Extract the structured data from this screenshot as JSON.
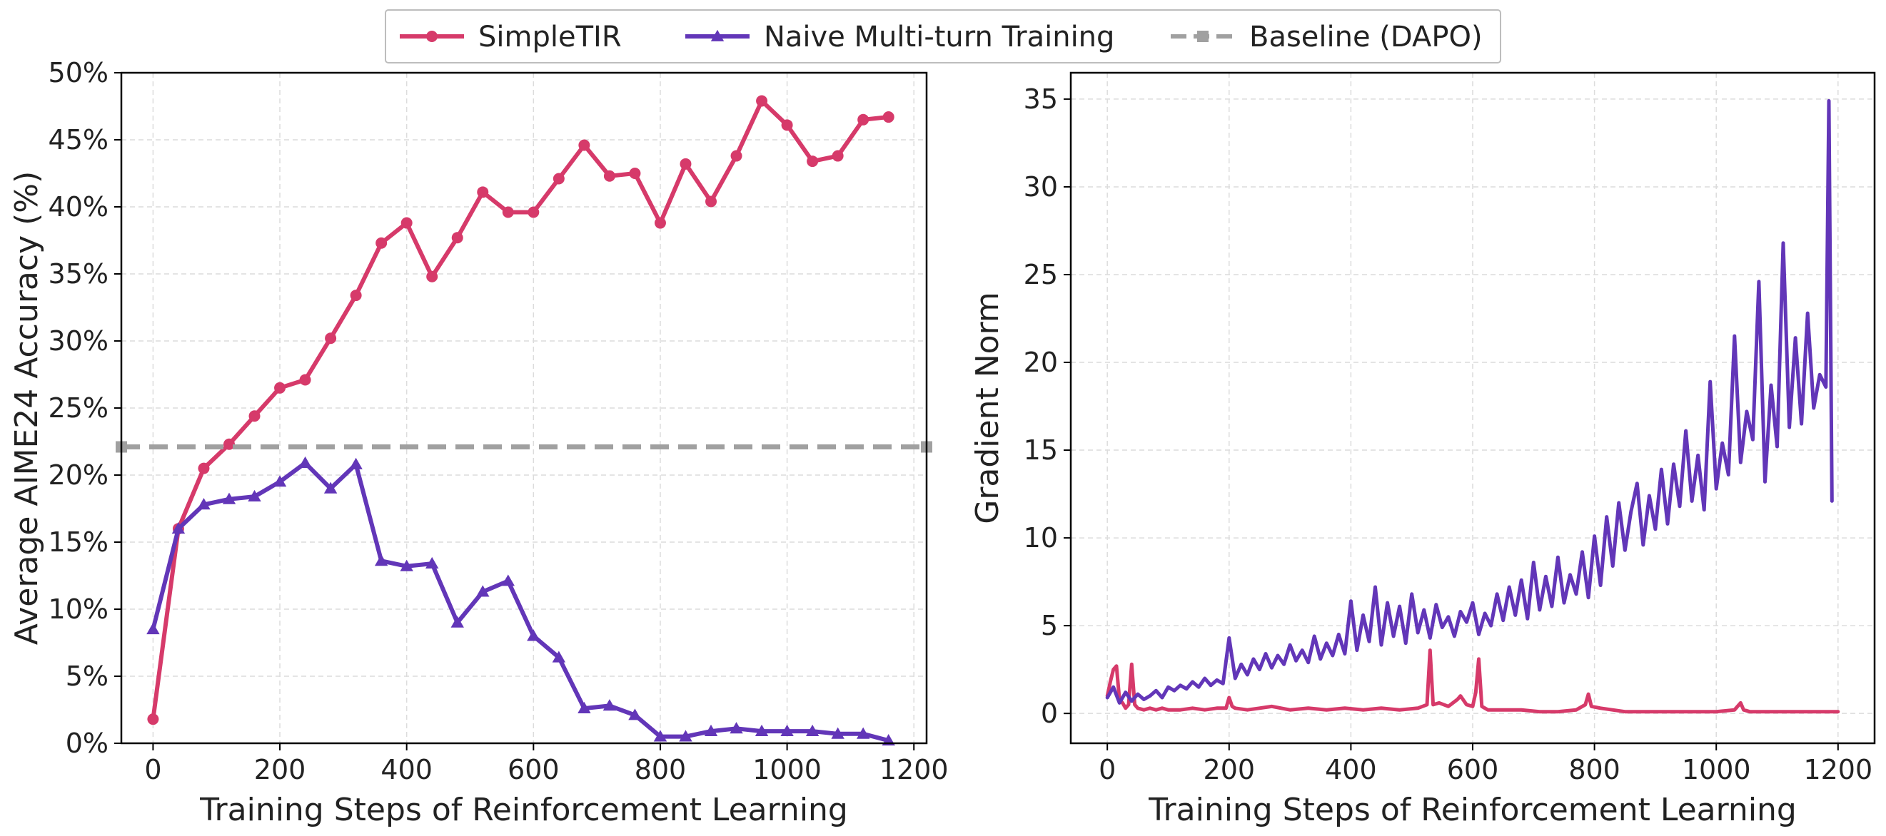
{
  "legend": {
    "placement": "top-center",
    "entries": [
      {
        "label": "SimpleTIR",
        "color": "#d63a6a",
        "marker": "circle",
        "style": "solid"
      },
      {
        "label": "Naive Multi-turn Training",
        "color": "#6236b8",
        "marker": "triangle",
        "style": "solid"
      },
      {
        "label": "Baseline (DAPO)",
        "color": "#a0a0a0",
        "marker": "square",
        "style": "dashed"
      }
    ]
  },
  "chart_data": [
    {
      "type": "line",
      "xlabel": "Training Steps of Reinforcement Learning",
      "ylabel": "Average AIME24 Accuracy (%)",
      "xlim": [
        -50,
        1220
      ],
      "ylim": [
        0,
        50
      ],
      "xticks": [
        0,
        200,
        400,
        600,
        800,
        1000,
        1200
      ],
      "xtick_labels": [
        "0",
        "200",
        "400",
        "600",
        "800",
        "1000",
        "1200"
      ],
      "yticks": [
        0,
        5,
        10,
        15,
        20,
        25,
        30,
        35,
        40,
        45,
        50
      ],
      "ytick_labels": [
        "0%",
        "5%",
        "10%",
        "15%",
        "20%",
        "25%",
        "30%",
        "35%",
        "40%",
        "45%",
        "50%"
      ],
      "grid": true,
      "series": [
        {
          "name": "SimpleTIR",
          "color": "#d63a6a",
          "marker": "circle",
          "x": [
            0,
            40,
            80,
            120,
            160,
            200,
            240,
            280,
            320,
            360,
            400,
            440,
            480,
            520,
            560,
            600,
            640,
            680,
            720,
            760,
            800,
            840,
            880,
            920,
            960,
            1000,
            1040,
            1080,
            1120,
            1160
          ],
          "y": [
            1.8,
            16.0,
            20.5,
            22.3,
            24.4,
            26.5,
            27.1,
            30.2,
            33.4,
            37.3,
            38.8,
            34.8,
            37.7,
            41.1,
            39.6,
            39.6,
            42.1,
            44.6,
            42.3,
            42.5,
            38.8,
            43.2,
            40.4,
            43.8,
            47.9,
            46.1,
            43.4,
            43.8,
            46.5,
            46.7
          ]
        },
        {
          "name": "Naive Multi-turn Training",
          "color": "#6236b8",
          "marker": "triangle",
          "x": [
            0,
            40,
            80,
            120,
            160,
            200,
            240,
            280,
            320,
            360,
            400,
            440,
            480,
            520,
            560,
            600,
            640,
            680,
            720,
            760,
            800,
            840,
            880,
            920,
            960,
            1000,
            1040,
            1080,
            1120,
            1160
          ],
          "y": [
            8.5,
            16.0,
            17.8,
            18.2,
            18.4,
            19.5,
            20.9,
            19.0,
            20.8,
            13.6,
            13.2,
            13.4,
            9.0,
            11.3,
            12.1,
            8.0,
            6.4,
            2.6,
            2.8,
            2.1,
            0.5,
            0.5,
            0.9,
            1.1,
            0.9,
            0.9,
            0.9,
            0.7,
            0.7,
            0.2
          ]
        },
        {
          "name": "Baseline (DAPO)",
          "color": "#a0a0a0",
          "marker": "square",
          "style": "dashed",
          "constant_y": 22.1
        }
      ]
    },
    {
      "type": "line",
      "xlabel": "Training Steps of Reinforcement Learning",
      "ylabel": "Gradient Norm",
      "xlim": [
        -60,
        1260
      ],
      "ylim": [
        -1.7,
        36.5
      ],
      "xticks": [
        0,
        200,
        400,
        600,
        800,
        1000,
        1200
      ],
      "xtick_labels": [
        "0",
        "200",
        "400",
        "600",
        "800",
        "1000",
        "1200"
      ],
      "yticks": [
        0,
        5,
        10,
        15,
        20,
        25,
        30,
        35
      ],
      "ytick_labels": [
        "0",
        "5",
        "10",
        "15",
        "20",
        "25",
        "30",
        "35"
      ],
      "grid": true,
      "series": [
        {
          "name": "SimpleTIR",
          "color": "#d63a6a",
          "x": [
            0,
            5,
            10,
            15,
            20,
            25,
            30,
            35,
            40,
            45,
            50,
            60,
            70,
            80,
            90,
            100,
            120,
            140,
            160,
            180,
            195,
            200,
            205,
            210,
            230,
            250,
            270,
            300,
            330,
            360,
            390,
            420,
            450,
            480,
            510,
            525,
            530,
            535,
            545,
            560,
            575,
            580,
            590,
            600,
            605,
            610,
            615,
            625,
            650,
            680,
            710,
            740,
            770,
            785,
            790,
            795,
            810,
            850,
            900,
            950,
            1000,
            1030,
            1040,
            1045,
            1055,
            1100,
            1150,
            1200
          ],
          "y": [
            1.0,
            1.8,
            2.5,
            2.7,
            0.8,
            0.6,
            0.3,
            0.5,
            2.8,
            0.5,
            0.3,
            0.2,
            0.3,
            0.2,
            0.3,
            0.2,
            0.2,
            0.3,
            0.2,
            0.3,
            0.3,
            0.9,
            0.4,
            0.3,
            0.2,
            0.3,
            0.4,
            0.2,
            0.3,
            0.2,
            0.3,
            0.2,
            0.3,
            0.2,
            0.3,
            0.5,
            3.6,
            0.5,
            0.6,
            0.4,
            0.8,
            1.0,
            0.5,
            0.4,
            1.2,
            3.1,
            0.4,
            0.2,
            0.2,
            0.2,
            0.1,
            0.1,
            0.2,
            0.5,
            1.1,
            0.4,
            0.3,
            0.1,
            0.1,
            0.1,
            0.1,
            0.2,
            0.6,
            0.2,
            0.1,
            0.1,
            0.1,
            0.1
          ]
        },
        {
          "name": "Naive Multi-turn Training",
          "color": "#6236b8",
          "x": [
            0,
            10,
            20,
            30,
            40,
            50,
            60,
            70,
            80,
            90,
            100,
            110,
            120,
            130,
            140,
            150,
            160,
            170,
            180,
            190,
            200,
            210,
            220,
            230,
            240,
            250,
            260,
            270,
            280,
            290,
            300,
            310,
            320,
            330,
            340,
            350,
            360,
            370,
            380,
            390,
            400,
            410,
            420,
            430,
            440,
            450,
            460,
            470,
            480,
            490,
            500,
            510,
            520,
            530,
            540,
            550,
            560,
            570,
            580,
            590,
            600,
            610,
            620,
            630,
            640,
            650,
            660,
            670,
            680,
            690,
            700,
            710,
            720,
            730,
            740,
            750,
            760,
            770,
            780,
            790,
            800,
            810,
            820,
            830,
            840,
            850,
            860,
            870,
            880,
            890,
            900,
            910,
            920,
            930,
            940,
            950,
            960,
            970,
            980,
            990,
            1000,
            1010,
            1020,
            1030,
            1040,
            1050,
            1060,
            1070,
            1080,
            1090,
            1100,
            1110,
            1120,
            1130,
            1140,
            1150,
            1160,
            1170,
            1180,
            1185,
            1190
          ],
          "y": [
            0.9,
            1.5,
            0.6,
            1.2,
            0.7,
            1.1,
            0.8,
            1.0,
            1.3,
            0.9,
            1.5,
            1.3,
            1.6,
            1.4,
            1.8,
            1.5,
            2.0,
            1.6,
            1.9,
            1.7,
            4.3,
            2.0,
            2.8,
            2.2,
            3.1,
            2.5,
            3.4,
            2.6,
            3.3,
            2.8,
            3.9,
            3.0,
            3.6,
            2.9,
            4.4,
            3.1,
            4.0,
            3.3,
            4.5,
            3.4,
            6.4,
            3.6,
            5.6,
            4.1,
            7.2,
            3.9,
            6.3,
            4.4,
            6.1,
            4.0,
            6.8,
            4.6,
            5.9,
            4.3,
            6.2,
            4.9,
            5.5,
            4.4,
            5.8,
            5.2,
            6.3,
            4.5,
            5.7,
            5.0,
            6.8,
            5.3,
            7.2,
            5.6,
            7.6,
            5.4,
            8.6,
            5.9,
            7.8,
            6.1,
            8.9,
            6.3,
            7.9,
            6.8,
            9.2,
            6.6,
            10.1,
            7.3,
            11.2,
            8.4,
            12.0,
            9.3,
            11.5,
            13.1,
            9.6,
            12.4,
            10.5,
            13.9,
            10.8,
            14.2,
            11.8,
            16.1,
            12.1,
            14.7,
            11.6,
            18.9,
            12.8,
            15.4,
            13.6,
            21.5,
            14.3,
            17.2,
            15.6,
            24.6,
            13.2,
            18.7,
            15.2,
            26.8,
            16.3,
            21.4,
            16.5,
            22.8,
            17.4,
            19.3,
            18.6,
            34.9,
            12.1
          ]
        }
      ]
    }
  ]
}
